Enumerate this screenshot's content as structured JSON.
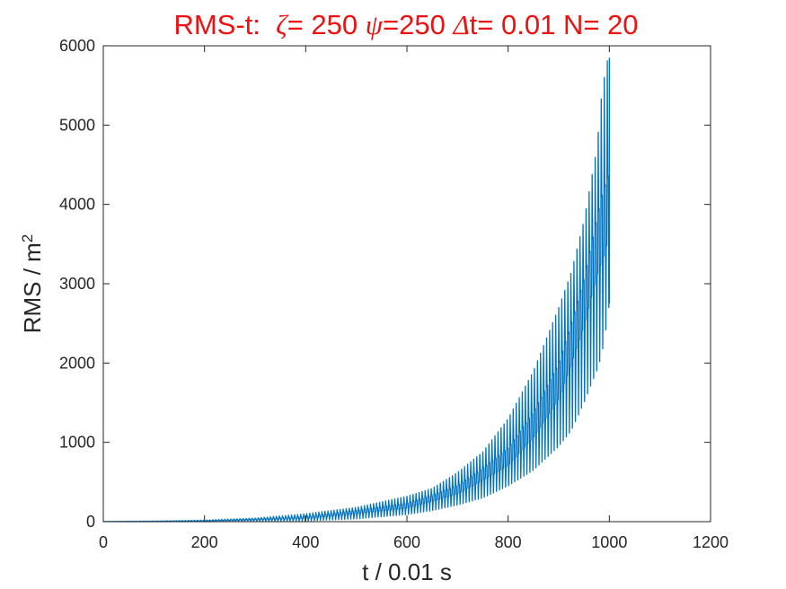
{
  "chart_data": {
    "type": "line",
    "title": {
      "prefix": "RMS-t:  ",
      "zeta_symbol": "ζ",
      "zeta_text": "= 250 ",
      "psi_symbol": "ψ",
      "psi_text": "=250 ",
      "delta_symbol": "Δ",
      "rest": "t= 0.01 N= 20"
    },
    "xlabel": "t / 0.01 s",
    "ylabel": {
      "text": "RMS / m",
      "superscript": "2"
    },
    "xlim": [
      0,
      1200
    ],
    "ylim": [
      0,
      6000
    ],
    "x_ticks": [
      "0",
      "200",
      "400",
      "600",
      "800",
      "1000",
      "1200"
    ],
    "y_ticks": [
      "0",
      "1000",
      "2000",
      "3000",
      "4000",
      "5000",
      "6000"
    ],
    "grid": false,
    "series_color": "#0072bd",
    "series": [
      {
        "envelope_upper": {
          "x": [
            0,
            100,
            200,
            300,
            400,
            500,
            600,
            650,
            700,
            750,
            800,
            850,
            900,
            925,
            950,
            975,
            985,
            995,
            1000
          ],
          "y": [
            2,
            8,
            20,
            45,
            100,
            180,
            320,
            420,
            620,
            880,
            1300,
            1900,
            2700,
            3150,
            3800,
            4700,
            5400,
            5800,
            5850
          ]
        },
        "envelope_lower": {
          "x": [
            0,
            100,
            200,
            300,
            400,
            500,
            600,
            650,
            700,
            750,
            800,
            850,
            900,
            925,
            950,
            975,
            985,
            995,
            1000
          ],
          "y": [
            0,
            0,
            0,
            3,
            10,
            35,
            90,
            140,
            210,
            300,
            450,
            650,
            950,
            1150,
            1500,
            1900,
            2100,
            2500,
            2750
          ]
        },
        "trend": {
          "x": [
            0,
            200,
            400,
            600,
            700,
            800,
            850,
            900,
            950,
            975,
            1000
          ],
          "y": [
            1,
            10,
            50,
            200,
            400,
            800,
            1200,
            1750,
            2800,
            3500,
            3900
          ]
        }
      }
    ]
  }
}
